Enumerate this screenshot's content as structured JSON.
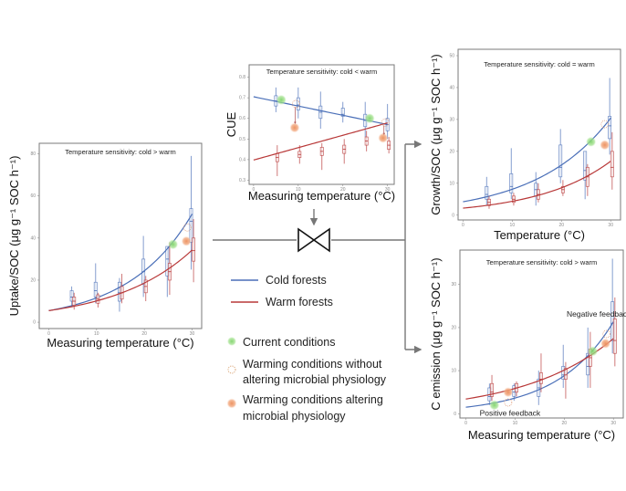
{
  "colors": {
    "cold": "#4a6fb8",
    "warm": "#b83838",
    "current": "#7fd36a",
    "altering": "#f0a070",
    "without": "#e0a080",
    "connector": "#777777"
  },
  "legend": {
    "cold_label": "Cold forests",
    "warm_label": "Warm forests",
    "current_label": "Current conditions",
    "without_label_1": "Warming conditions without",
    "without_label_2": "altering microbial physiology",
    "altering_label_1": "Warming conditions altering",
    "altering_label_2": "microbial physiology"
  },
  "chart_data": [
    {
      "id": "uptake",
      "type": "line",
      "title": "",
      "annotation": "Temperature sensitivity: cold > warm",
      "xlabel": "Measuring temperature (°C)",
      "ylabel": "Uptake/SOC (μg g⁻¹ SOC h⁻¹)",
      "xlim": [
        -2,
        32
      ],
      "ylim": [
        -3,
        85
      ],
      "xticks": [
        0,
        10,
        20,
        30
      ],
      "yticks": [
        0,
        20,
        40,
        60,
        80
      ],
      "model": "exp",
      "series": [
        {
          "name": "Cold forests",
          "a": 5.5,
          "b": 0.0745,
          "boxes": [
            {
              "x": 4.8,
              "lo": 8,
              "q1": 10,
              "med": 12,
              "q3": 15,
              "hi": 17
            },
            {
              "x": 9.8,
              "lo": 9,
              "q1": 12,
              "med": 15,
              "q3": 19,
              "hi": 28
            },
            {
              "x": 14.8,
              "lo": 5,
              "q1": 10,
              "med": 14,
              "q3": 19,
              "hi": 21
            },
            {
              "x": 19.8,
              "lo": 12,
              "q1": 18,
              "med": 24,
              "q3": 30,
              "hi": 41
            },
            {
              "x": 24.8,
              "lo": 12,
              "q1": 22,
              "med": 30,
              "q3": 36,
              "hi": 36
            },
            {
              "x": 29.8,
              "lo": 25,
              "q1": 38,
              "med": 48,
              "q3": 54,
              "hi": 79
            }
          ]
        },
        {
          "name": "Warm forests",
          "a": 5.5,
          "b": 0.061,
          "boxes": [
            {
              "x": 5.3,
              "lo": 6,
              "q1": 8,
              "med": 10,
              "q3": 12,
              "hi": 14
            },
            {
              "x": 10.3,
              "lo": 7,
              "q1": 9,
              "med": 11,
              "q3": 13,
              "hi": 14
            },
            {
              "x": 15.3,
              "lo": 9,
              "q1": 11,
              "med": 14,
              "q3": 17,
              "hi": 23
            },
            {
              "x": 20.3,
              "lo": 10,
              "q1": 14,
              "med": 17,
              "q3": 20,
              "hi": 22
            },
            {
              "x": 25.3,
              "lo": 13,
              "q1": 20,
              "med": 24,
              "q3": 28,
              "hi": 38
            },
            {
              "x": 30.3,
              "lo": 19,
              "q1": 29,
              "med": 34,
              "q3": 40,
              "hi": 49
            }
          ]
        }
      ],
      "markers": [
        {
          "kind": "current",
          "x": 26,
          "y": 37
        },
        {
          "kind": "without",
          "x": 29,
          "y": 45
        },
        {
          "kind": "altering",
          "x": 28.8,
          "y": 38.5
        }
      ]
    },
    {
      "id": "cue",
      "type": "line",
      "title": "",
      "annotation": "Temperature sensitivity: cold < warm",
      "xlabel": "Measuring temperature (°C)",
      "ylabel": "CUE",
      "xlim": [
        -1,
        31.5
      ],
      "ylim": [
        0.28,
        0.86
      ],
      "xticks": [
        0,
        10,
        20,
        30
      ],
      "yticks": [
        0.3,
        0.4,
        0.5,
        0.6,
        0.7,
        0.8
      ],
      "model": "linear",
      "series": [
        {
          "name": "Cold forests",
          "a": 0.705,
          "b": -0.0045,
          "boxes": [
            {
              "x": 5,
              "lo": 0.63,
              "q1": 0.66,
              "med": 0.685,
              "q3": 0.71,
              "hi": 0.75
            },
            {
              "x": 10,
              "lo": 0.6,
              "q1": 0.64,
              "med": 0.665,
              "q3": 0.7,
              "hi": 0.75
            },
            {
              "x": 15,
              "lo": 0.55,
              "q1": 0.6,
              "med": 0.63,
              "q3": 0.66,
              "hi": 0.73
            },
            {
              "x": 20,
              "lo": 0.58,
              "q1": 0.61,
              "med": 0.62,
              "q3": 0.65,
              "hi": 0.68
            },
            {
              "x": 25,
              "lo": 0.51,
              "q1": 0.56,
              "med": 0.59,
              "q3": 0.62,
              "hi": 0.68
            },
            {
              "x": 30,
              "lo": 0.5,
              "q1": 0.54,
              "med": 0.57,
              "q3": 0.6,
              "hi": 0.67
            }
          ]
        },
        {
          "name": "Warm forests",
          "a": 0.398,
          "b": 0.006,
          "boxes": [
            {
              "x": 5.3,
              "lo": 0.32,
              "q1": 0.39,
              "med": 0.41,
              "q3": 0.43,
              "hi": 0.47
            },
            {
              "x": 10.3,
              "lo": 0.38,
              "q1": 0.41,
              "med": 0.425,
              "q3": 0.44,
              "hi": 0.47
            },
            {
              "x": 15.3,
              "lo": 0.35,
              "q1": 0.42,
              "med": 0.44,
              "q3": 0.46,
              "hi": 0.48
            },
            {
              "x": 20.3,
              "lo": 0.38,
              "q1": 0.43,
              "med": 0.45,
              "q3": 0.47,
              "hi": 0.5
            },
            {
              "x": 25.3,
              "lo": 0.44,
              "q1": 0.47,
              "med": 0.49,
              "q3": 0.51,
              "hi": 0.54
            },
            {
              "x": 30.3,
              "lo": 0.43,
              "q1": 0.45,
              "med": 0.47,
              "q3": 0.49,
              "hi": 0.51
            }
          ]
        }
      ],
      "markers": [
        {
          "kind": "current",
          "x": 6.2,
          "y": 0.69
        },
        {
          "kind": "without",
          "x": 9.5,
          "y": 0.67
        },
        {
          "kind": "altering",
          "x": 9.2,
          "y": 0.555
        },
        {
          "kind": "current",
          "x": 26,
          "y": 0.6
        },
        {
          "kind": "without",
          "x": 29.5,
          "y": 0.58
        },
        {
          "kind": "altering",
          "x": 29,
          "y": 0.505
        }
      ],
      "arrows": [
        {
          "x": 9.3,
          "y1": 0.655,
          "y2": 0.575
        },
        {
          "x": 29.2,
          "y1": 0.565,
          "y2": 0.52
        }
      ]
    },
    {
      "id": "growth",
      "type": "line",
      "title": "",
      "annotation": "Temperature sensitivity: cold = warm",
      "xlabel": "Temperature (°C)",
      "ylabel": "Growth/SOC (μg g⁻¹ SOC h⁻¹)",
      "xlim": [
        -1,
        32
      ],
      "ylim": [
        -1.5,
        52
      ],
      "xticks": [
        0,
        10,
        20,
        30
      ],
      "yticks": [
        0,
        10,
        20,
        30,
        40,
        50
      ],
      "model": "exp",
      "series": [
        {
          "name": "Cold forests",
          "a": 4.2,
          "b": 0.066,
          "boxes": [
            {
              "x": 4.8,
              "lo": 3,
              "q1": 5,
              "med": 6.5,
              "q3": 9,
              "hi": 12
            },
            {
              "x": 9.8,
              "lo": 5,
              "q1": 7,
              "med": 9,
              "q3": 13,
              "hi": 21
            },
            {
              "x": 14.8,
              "lo": 3,
              "q1": 6,
              "med": 8,
              "q3": 10,
              "hi": 13.5
            },
            {
              "x": 19.8,
              "lo": 10,
              "q1": 12,
              "med": 15,
              "q3": 22,
              "hi": 27
            },
            {
              "x": 24.8,
              "lo": 5,
              "q1": 11,
              "med": 14,
              "q3": 20,
              "hi": 20
            },
            {
              "x": 29.8,
              "lo": 19,
              "q1": 24,
              "med": 28,
              "q3": 31,
              "hi": 43
            }
          ]
        },
        {
          "name": "Warm forests",
          "a": 2.2,
          "b": 0.068,
          "boxes": [
            {
              "x": 5.3,
              "lo": 2,
              "q1": 3,
              "med": 4,
              "q3": 5,
              "hi": 6
            },
            {
              "x": 10.3,
              "lo": 3,
              "q1": 4,
              "med": 5,
              "q3": 6,
              "hi": 7
            },
            {
              "x": 15.3,
              "lo": 4,
              "q1": 5,
              "med": 6.5,
              "q3": 8,
              "hi": 10
            },
            {
              "x": 20.3,
              "lo": 6,
              "q1": 7,
              "med": 8,
              "q3": 9,
              "hi": 11
            },
            {
              "x": 25.3,
              "lo": 6,
              "q1": 9,
              "med": 12,
              "q3": 15,
              "hi": 16
            },
            {
              "x": 30.3,
              "lo": 8,
              "q1": 12,
              "med": 15,
              "q3": 20,
              "hi": 26
            }
          ]
        }
      ],
      "markers": [
        {
          "kind": "current",
          "x": 26,
          "y": 23
        },
        {
          "kind": "without",
          "x": 28.8,
          "y": 28.5
        },
        {
          "kind": "altering",
          "x": 28.8,
          "y": 22
        }
      ]
    },
    {
      "id": "c-emission",
      "type": "line",
      "title": "",
      "annotation": "Temperature sensitivity: cold > warm",
      "xlabel": "Measuring temperature (°C)",
      "ylabel": "C emission (μg g⁻¹ SOC h⁻¹)",
      "xlim": [
        -1.2,
        32
      ],
      "ylim": [
        -1,
        38
      ],
      "xticks": [
        0,
        10,
        20,
        30
      ],
      "yticks": [
        0,
        10,
        20,
        30
      ],
      "model": "exp",
      "series": [
        {
          "name": "Cold forests",
          "a": 1.5,
          "b": 0.0885,
          "boxes": [
            {
              "x": 4.8,
              "lo": 2,
              "q1": 3,
              "med": 4,
              "q3": 6,
              "hi": 7
            },
            {
              "x": 9.8,
              "lo": 3,
              "q1": 4,
              "med": 5,
              "q3": 6.5,
              "hi": 7
            },
            {
              "x": 14.8,
              "lo": 2,
              "q1": 4,
              "med": 6,
              "q3": 8,
              "hi": 10
            },
            {
              "x": 19.8,
              "lo": 6,
              "q1": 8,
              "med": 9,
              "q3": 11,
              "hi": 16
            },
            {
              "x": 24.8,
              "lo": 6,
              "q1": 9,
              "med": 11,
              "q3": 14,
              "hi": 20
            },
            {
              "x": 29.8,
              "lo": 14,
              "q1": 17,
              "med": 21,
              "q3": 26,
              "hi": 36
            }
          ]
        },
        {
          "name": "Warm forests",
          "a": 3.4,
          "b": 0.0545,
          "boxes": [
            {
              "x": 5.3,
              "lo": 3,
              "q1": 4,
              "med": 5,
              "q3": 7,
              "hi": 9
            },
            {
              "x": 10.3,
              "lo": 4,
              "q1": 5,
              "med": 6,
              "q3": 7,
              "hi": 7.5
            },
            {
              "x": 15.3,
              "lo": 5,
              "q1": 7,
              "med": 8,
              "q3": 9.5,
              "hi": 14
            },
            {
              "x": 20.3,
              "lo": 3.5,
              "q1": 8,
              "med": 9,
              "q3": 10.5,
              "hi": 12
            },
            {
              "x": 25.3,
              "lo": 6,
              "q1": 11,
              "med": 13,
              "q3": 15,
              "hi": 19
            },
            {
              "x": 30.3,
              "lo": 11,
              "q1": 14,
              "med": 17,
              "q3": 22,
              "hi": 27
            }
          ]
        }
      ],
      "markers": [
        {
          "kind": "current",
          "x": 5.8,
          "y": 2
        },
        {
          "kind": "without",
          "x": 8.6,
          "y": 2.6
        },
        {
          "kind": "altering",
          "x": 8.6,
          "y": 5
        },
        {
          "kind": "current",
          "x": 25.8,
          "y": 14.5
        },
        {
          "kind": "without",
          "x": 28.6,
          "y": 18.5
        },
        {
          "kind": "altering",
          "x": 28.4,
          "y": 16.3
        }
      ],
      "feedback_labels": {
        "negative": "Negative feedback",
        "positive": "Positive feedback"
      }
    }
  ]
}
